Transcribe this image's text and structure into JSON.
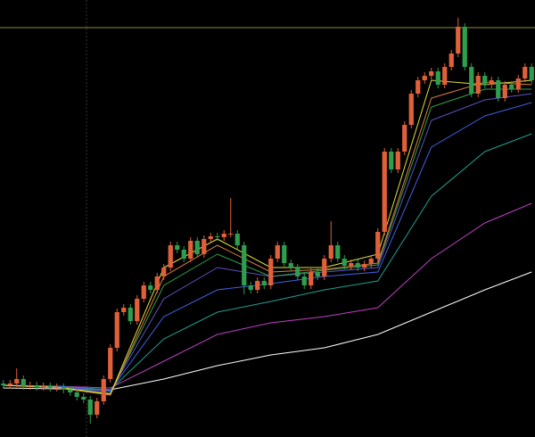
{
  "chart_data": {
    "type": "candlestick",
    "ylim": [
      0,
      490
    ],
    "up_color": "#e0603a",
    "down_color": "#2e9e4e",
    "open": [
      60,
      58,
      60,
      65,
      57,
      58,
      56,
      57,
      55,
      56,
      53,
      50,
      45,
      42,
      25,
      40,
      65,
      100,
      140,
      145,
      130,
      155,
      170,
      165,
      180,
      190,
      215,
      210,
      200,
      220,
      205,
      222,
      225,
      224,
      228,
      228,
      215,
      170,
      165,
      175,
      170,
      200,
      215,
      195,
      190,
      180,
      170,
      185,
      180,
      200,
      215,
      200,
      192,
      195,
      190,
      194,
      200,
      230,
      320,
      300,
      320,
      350,
      385,
      400,
      405,
      410,
      395,
      415,
      430,
      460,
      415,
      385,
      405,
      395,
      400,
      380,
      395,
      390,
      402,
      415
    ],
    "high": [
      64,
      64,
      77,
      69,
      62,
      62,
      61,
      61,
      60,
      60,
      57,
      54,
      49,
      46,
      44,
      69,
      104,
      144,
      149,
      149,
      159,
      174,
      174,
      184,
      194,
      219,
      219,
      214,
      224,
      224,
      226,
      229,
      229,
      232,
      268,
      232,
      219,
      174,
      179,
      179,
      204,
      219,
      219,
      199,
      194,
      184,
      189,
      189,
      204,
      242,
      219,
      204,
      199,
      199,
      198,
      204,
      234,
      324,
      324,
      324,
      354,
      389,
      404,
      409,
      414,
      414,
      419,
      434,
      470,
      464,
      419,
      409,
      409,
      404,
      404,
      399,
      399,
      406,
      419,
      419
    ],
    "low": [
      54,
      54,
      56,
      53,
      53,
      52,
      52,
      51,
      51,
      49,
      46,
      41,
      38,
      15,
      21,
      36,
      61,
      96,
      136,
      126,
      126,
      151,
      161,
      161,
      176,
      186,
      206,
      196,
      196,
      201,
      201,
      218,
      220,
      220,
      224,
      211,
      160,
      161,
      161,
      166,
      166,
      196,
      191,
      186,
      176,
      166,
      166,
      176,
      176,
      196,
      196,
      188,
      188,
      186,
      186,
      190,
      196,
      226,
      296,
      296,
      316,
      346,
      381,
      396,
      401,
      391,
      391,
      411,
      426,
      411,
      381,
      381,
      391,
      391,
      376,
      376,
      386,
      386,
      398,
      396
    ],
    "close": [
      58,
      60,
      65,
      57,
      58,
      56,
      57,
      55,
      56,
      53,
      50,
      45,
      42,
      25,
      40,
      65,
      100,
      140,
      145,
      130,
      155,
      170,
      165,
      180,
      190,
      215,
      210,
      200,
      220,
      205,
      222,
      225,
      224,
      228,
      228,
      215,
      170,
      165,
      175,
      170,
      200,
      215,
      195,
      190,
      180,
      170,
      185,
      180,
      200,
      215,
      200,
      192,
      195,
      190,
      194,
      200,
      230,
      320,
      300,
      320,
      350,
      385,
      400,
      405,
      410,
      395,
      415,
      430,
      460,
      415,
      385,
      405,
      395,
      400,
      380,
      395,
      390,
      402,
      415,
      400
    ],
    "lines": [
      {
        "color": "#ffffff",
        "x": [
          0,
          8,
          16,
          24,
          32,
          40,
          48,
          56,
          64,
          72,
          79
        ],
        "values": [
          55,
          54,
          53,
          65,
          80,
          92,
          100,
          115,
          140,
          165,
          185
        ]
      },
      {
        "color": "#c040c0",
        "x": [
          0,
          8,
          16,
          24,
          32,
          40,
          48,
          56,
          64,
          72,
          79
        ],
        "values": [
          58,
          57,
          55,
          85,
          115,
          128,
          135,
          145,
          200,
          240,
          262
        ]
      },
      {
        "color": "#20a090",
        "x": [
          0,
          8,
          16,
          24,
          32,
          40,
          48,
          56,
          64,
          72,
          79
        ],
        "values": [
          58,
          57,
          53,
          110,
          140,
          152,
          165,
          175,
          270,
          320,
          340
        ]
      },
      {
        "color": "#4060e0",
        "x": [
          0,
          8,
          16,
          24,
          32,
          40,
          48,
          56,
          64,
          72,
          79
        ],
        "values": [
          58,
          57,
          52,
          135,
          165,
          172,
          180,
          185,
          325,
          360,
          375
        ]
      },
      {
        "color": "#6050c0",
        "x": [
          0,
          8,
          16,
          24,
          32,
          40,
          48,
          56,
          64,
          72,
          79
        ],
        "values": [
          58,
          56,
          51,
          155,
          190,
          180,
          185,
          190,
          355,
          378,
          385
        ]
      },
      {
        "color": "#30a050",
        "x": [
          0,
          8,
          16,
          24,
          32,
          40,
          48,
          56,
          64,
          72,
          79
        ],
        "values": [
          58,
          56,
          49,
          170,
          205,
          180,
          187,
          193,
          370,
          390,
          390
        ]
      },
      {
        "color": "#e08040",
        "x": [
          0,
          8,
          16,
          24,
          32,
          40,
          48,
          56,
          64,
          72,
          79
        ],
        "values": [
          58,
          55,
          47,
          180,
          215,
          185,
          188,
          195,
          380,
          398,
          395
        ]
      },
      {
        "color": "#e0e040",
        "x": [
          0,
          8,
          16,
          24,
          32,
          40,
          48,
          56,
          64,
          72,
          79
        ],
        "values": [
          58,
          56,
          48,
          190,
          222,
          190,
          190,
          205,
          400,
          395,
          400
        ]
      }
    ],
    "level": 459,
    "level_color": "#8a8a40"
  }
}
